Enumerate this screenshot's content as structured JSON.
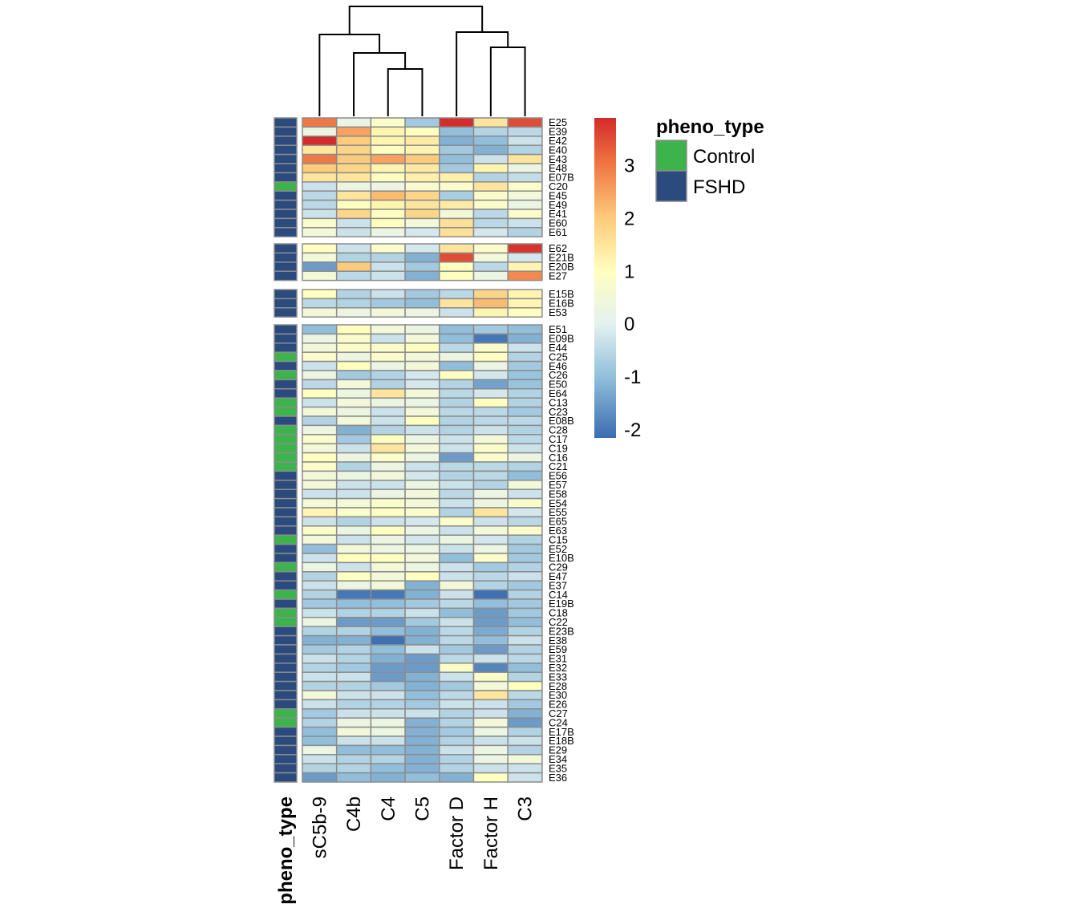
{
  "chart_data": {
    "type": "heatmap",
    "annotation_title": "pheno_type",
    "legend": {
      "title": "pheno_type",
      "items": [
        {
          "label": "Control",
          "color": "#3CB44B"
        },
        {
          "label": "FSHD",
          "color": "#2B4A7E"
        }
      ]
    },
    "colorbar": {
      "ticks": [
        3,
        2,
        1,
        0,
        -1,
        -2
      ],
      "range": [
        -2.15,
        3.9
      ],
      "stops": [
        {
          "value": -2.15,
          "color": "#3B6CB0"
        },
        {
          "value": -1.0,
          "color": "#91BFDB"
        },
        {
          "value": 0.0,
          "color": "#E4F1F0"
        },
        {
          "value": 1.0,
          "color": "#FFFFBF"
        },
        {
          "value": 2.0,
          "color": "#FDCB7B"
        },
        {
          "value": 3.0,
          "color": "#F07844"
        },
        {
          "value": 3.9,
          "color": "#D42B2B"
        }
      ]
    },
    "columns": [
      "sC5b-9",
      "C4b",
      "C4",
      "C5",
      "Factor D",
      "Factor H",
      "C3"
    ],
    "row_groups": [
      {
        "rows": [
          {
            "label": "E25",
            "pheno": "FSHD",
            "values": [
              3.0,
              0.3,
              0.8,
              -0.8,
              3.9,
              1.5,
              3.5
            ]
          },
          {
            "label": "E39",
            "pheno": "FSHD",
            "values": [
              0.3,
              2.5,
              1.2,
              1.0,
              -1.0,
              -0.6,
              -0.5
            ]
          },
          {
            "label": "E42",
            "pheno": "FSHD",
            "values": [
              3.9,
              2.0,
              1.2,
              1.4,
              -1.2,
              -1.0,
              -0.3
            ]
          },
          {
            "label": "E40",
            "pheno": "FSHD",
            "values": [
              1.5,
              1.8,
              1.0,
              1.2,
              -0.8,
              -1.2,
              -0.6
            ]
          },
          {
            "label": "E43",
            "pheno": "FSHD",
            "values": [
              3.0,
              2.0,
              2.5,
              2.0,
              -1.0,
              -0.3,
              1.5
            ]
          },
          {
            "label": "E48",
            "pheno": "FSHD",
            "values": [
              2.0,
              1.8,
              1.2,
              1.4,
              -0.8,
              1.2,
              0.3
            ]
          },
          {
            "label": "E07B",
            "pheno": "FSHD",
            "values": [
              1.5,
              1.5,
              1.0,
              1.3,
              1.3,
              -0.6,
              -0.4
            ]
          },
          {
            "label": "C20",
            "pheno": "Control",
            "values": [
              -0.3,
              0.3,
              0.3,
              0.7,
              0.8,
              1.5,
              0.8
            ]
          },
          {
            "label": "E45",
            "pheno": "FSHD",
            "values": [
              -0.5,
              1.5,
              2.2,
              1.8,
              -0.7,
              0.8,
              0.5
            ]
          },
          {
            "label": "E49",
            "pheno": "FSHD",
            "values": [
              -0.5,
              1.0,
              1.2,
              1.5,
              1.4,
              0.8,
              0.3
            ]
          },
          {
            "label": "E41",
            "pheno": "FSHD",
            "values": [
              -0.3,
              1.8,
              1.0,
              1.8,
              0.5,
              -0.5,
              0.8
            ]
          },
          {
            "label": "E60",
            "pheno": "FSHD",
            "values": [
              0.8,
              -0.3,
              1.0,
              0.5,
              1.6,
              -0.5,
              -0.3
            ]
          },
          {
            "label": "E61",
            "pheno": "FSHD",
            "values": [
              0.5,
              -0.3,
              0.3,
              -0.2,
              1.6,
              -0.2,
              -0.6
            ]
          }
        ]
      },
      {
        "rows": [
          {
            "label": "E62",
            "pheno": "FSHD",
            "values": [
              1.0,
              -0.3,
              0.8,
              -0.2,
              1.5,
              0.8,
              3.8
            ]
          },
          {
            "label": "E21B",
            "pheno": "FSHD",
            "values": [
              0.5,
              -0.6,
              -0.6,
              -1.2,
              3.5,
              0.5,
              -0.2
            ]
          },
          {
            "label": "E20B",
            "pheno": "FSHD",
            "values": [
              -1.5,
              2.0,
              -0.3,
              -0.8,
              1.0,
              -0.5,
              1.2
            ]
          },
          {
            "label": "E27",
            "pheno": "FSHD",
            "values": [
              0.5,
              -0.5,
              -0.3,
              -1.2,
              1.0,
              0.3,
              2.8
            ]
          }
        ]
      },
      {
        "rows": [
          {
            "label": "E15B",
            "pheno": "FSHD",
            "values": [
              1.0,
              -0.6,
              -0.3,
              -0.8,
              -0.5,
              1.8,
              1.2
            ]
          },
          {
            "label": "E16B",
            "pheno": "FSHD",
            "values": [
              -0.5,
              -0.6,
              -0.8,
              -1.0,
              1.5,
              2.2,
              1.2
            ]
          },
          {
            "label": "E53",
            "pheno": "FSHD",
            "values": [
              0.5,
              0.3,
              0.5,
              0.3,
              -0.3,
              1.2,
              1.0
            ]
          }
        ]
      },
      {
        "rows": [
          {
            "label": "E51",
            "pheno": "FSHD",
            "values": [
              -1.0,
              1.0,
              0.5,
              0.3,
              -1.0,
              -0.8,
              -1.0
            ]
          },
          {
            "label": "E09B",
            "pheno": "FSHD",
            "values": [
              0.3,
              0.8,
              -0.3,
              0.5,
              -1.0,
              -2.0,
              -1.2
            ]
          },
          {
            "label": "E44",
            "pheno": "FSHD",
            "values": [
              0.5,
              0.8,
              0.8,
              1.0,
              -0.5,
              0.8,
              -0.3
            ]
          },
          {
            "label": "C25",
            "pheno": "Control",
            "values": [
              0.8,
              0.3,
              0.8,
              0.5,
              0.3,
              1.0,
              -0.6
            ]
          },
          {
            "label": "E46",
            "pheno": "FSHD",
            "values": [
              -0.3,
              1.0,
              0.3,
              0.5,
              -1.0,
              0.3,
              -0.8
            ]
          },
          {
            "label": "C26",
            "pheno": "Control",
            "values": [
              0.3,
              -0.8,
              -0.6,
              -0.2,
              1.0,
              -0.2,
              -0.9
            ]
          },
          {
            "label": "E50",
            "pheno": "FSHD",
            "values": [
              -0.5,
              0.5,
              -0.6,
              -0.2,
              -0.6,
              -1.4,
              -0.9
            ]
          },
          {
            "label": "E64",
            "pheno": "FSHD",
            "values": [
              1.0,
              0.3,
              1.5,
              0.5,
              -0.5,
              -0.2,
              -0.6
            ]
          },
          {
            "label": "C13",
            "pheno": "Control",
            "values": [
              -0.3,
              0.5,
              0.3,
              0.3,
              -0.6,
              1.0,
              -0.6
            ]
          },
          {
            "label": "C23",
            "pheno": "Control",
            "values": [
              0.5,
              0.3,
              -0.3,
              0.5,
              -0.5,
              -0.5,
              -0.8
            ]
          },
          {
            "label": "E08B",
            "pheno": "FSHD",
            "values": [
              -0.6,
              0.5,
              -0.3,
              1.0,
              -0.6,
              -0.5,
              -0.5
            ]
          },
          {
            "label": "C28",
            "pheno": "Control",
            "values": [
              0.3,
              -1.2,
              -0.6,
              -0.3,
              -0.6,
              -0.3,
              -0.6
            ]
          },
          {
            "label": "C17",
            "pheno": "Control",
            "values": [
              0.8,
              -0.8,
              1.0,
              0.3,
              -0.3,
              0.5,
              -0.5
            ]
          },
          {
            "label": "C19",
            "pheno": "Control",
            "values": [
              0.5,
              -0.3,
              1.5,
              0.5,
              -0.3,
              0.8,
              -0.3
            ]
          },
          {
            "label": "C16",
            "pheno": "Control",
            "values": [
              1.0,
              0.3,
              0.8,
              0.3,
              -1.5,
              0.8,
              0.3
            ]
          },
          {
            "label": "C21",
            "pheno": "Control",
            "values": [
              0.8,
              -0.6,
              0.3,
              -0.3,
              -0.5,
              -0.5,
              -0.6
            ]
          },
          {
            "label": "E56",
            "pheno": "FSHD",
            "values": [
              0.5,
              0.3,
              0.5,
              -0.2,
              -0.6,
              -0.5,
              -1.0
            ]
          },
          {
            "label": "E57",
            "pheno": "FSHD",
            "values": [
              0.5,
              -0.3,
              -0.3,
              0.3,
              -0.3,
              -0.6,
              0.5
            ]
          },
          {
            "label": "E58",
            "pheno": "FSHD",
            "values": [
              -0.3,
              -0.3,
              0.3,
              0.5,
              -0.5,
              0.3,
              -0.3
            ]
          },
          {
            "label": "E54",
            "pheno": "FSHD",
            "values": [
              0.5,
              0.5,
              0.8,
              0.5,
              -0.3,
              0.3,
              0.8
            ]
          },
          {
            "label": "E55",
            "pheno": "FSHD",
            "values": [
              1.2,
              0.8,
              1.0,
              0.8,
              -0.6,
              1.5,
              -0.2
            ]
          },
          {
            "label": "E65",
            "pheno": "FSHD",
            "values": [
              -0.3,
              -0.6,
              -0.3,
              -0.2,
              0.8,
              -0.3,
              -0.5
            ]
          },
          {
            "label": "E63",
            "pheno": "FSHD",
            "values": [
              0.8,
              0.3,
              1.0,
              0.3,
              -0.3,
              0.5,
              0.8
            ]
          },
          {
            "label": "C15",
            "pheno": "Control",
            "values": [
              0.5,
              -0.3,
              0.3,
              -0.2,
              0.3,
              -0.2,
              -0.6
            ]
          },
          {
            "label": "E52",
            "pheno": "FSHD",
            "values": [
              -1.0,
              0.5,
              0.3,
              0.3,
              -0.3,
              0.3,
              -0.8
            ]
          },
          {
            "label": "E10B",
            "pheno": "FSHD",
            "values": [
              -0.3,
              1.0,
              1.0,
              0.5,
              -1.0,
              0.8,
              -0.8
            ]
          },
          {
            "label": "C29",
            "pheno": "Control",
            "values": [
              0.3,
              -0.3,
              0.5,
              0.3,
              -0.3,
              -0.8,
              -0.6
            ]
          },
          {
            "label": "E47",
            "pheno": "FSHD",
            "values": [
              -0.6,
              1.0,
              0.5,
              1.0,
              -0.3,
              -0.5,
              -0.3
            ]
          },
          {
            "label": "E37",
            "pheno": "FSHD",
            "values": [
              -0.3,
              0.3,
              0.5,
              -1.2,
              0.5,
              -0.6,
              -0.8
            ]
          },
          {
            "label": "C14",
            "pheno": "Control",
            "values": [
              -0.6,
              -2.0,
              -2.0,
              -1.2,
              -0.3,
              -2.1,
              -0.6
            ]
          },
          {
            "label": "E19B",
            "pheno": "FSHD",
            "values": [
              -0.8,
              -1.0,
              -1.0,
              -0.8,
              -0.5,
              -1.0,
              -0.8
            ]
          },
          {
            "label": "C18",
            "pheno": "Control",
            "values": [
              -0.3,
              -0.6,
              -0.6,
              -0.3,
              -1.0,
              -1.5,
              -0.8
            ]
          },
          {
            "label": "C22",
            "pheno": "Control",
            "values": [
              0.3,
              -1.5,
              -1.5,
              -0.8,
              -0.3,
              -1.5,
              -1.0
            ]
          },
          {
            "label": "E23B",
            "pheno": "FSHD",
            "values": [
              -0.6,
              -0.6,
              -1.0,
              -1.2,
              -0.5,
              -1.3,
              -0.6
            ]
          },
          {
            "label": "E38",
            "pheno": "FSHD",
            "values": [
              -1.2,
              -1.2,
              -2.1,
              -1.2,
              -0.5,
              -1.0,
              -0.3
            ]
          },
          {
            "label": "E59",
            "pheno": "FSHD",
            "values": [
              -0.8,
              -0.6,
              -1.0,
              -0.3,
              -0.8,
              -1.5,
              -0.6
            ]
          },
          {
            "label": "E31",
            "pheno": "FSHD",
            "values": [
              -0.3,
              -0.6,
              -1.2,
              -1.5,
              -0.5,
              -0.3,
              -0.5
            ]
          },
          {
            "label": "E32",
            "pheno": "FSHD",
            "values": [
              -0.6,
              -0.8,
              -1.5,
              -1.5,
              0.8,
              -1.8,
              -1.0
            ]
          },
          {
            "label": "E33",
            "pheno": "FSHD",
            "values": [
              -0.3,
              -0.3,
              -1.5,
              -1.2,
              -0.3,
              0.8,
              -0.6
            ]
          },
          {
            "label": "E28",
            "pheno": "FSHD",
            "values": [
              -0.6,
              -0.6,
              -0.8,
              -1.2,
              -0.8,
              0.5,
              1.0
            ]
          },
          {
            "label": "E30",
            "pheno": "FSHD",
            "values": [
              0.5,
              -0.3,
              -0.3,
              -1.0,
              -0.5,
              1.5,
              -0.5
            ]
          },
          {
            "label": "E26",
            "pheno": "FSHD",
            "values": [
              -0.3,
              -0.6,
              -0.6,
              -0.8,
              -0.3,
              -0.3,
              -0.8
            ]
          },
          {
            "label": "C27",
            "pheno": "Control",
            "values": [
              -0.8,
              -0.3,
              -0.3,
              -0.3,
              -0.6,
              -0.3,
              -1.2
            ]
          },
          {
            "label": "C24",
            "pheno": "Control",
            "values": [
              -0.6,
              0.3,
              0.3,
              -1.2,
              -0.6,
              0.5,
              -1.5
            ]
          },
          {
            "label": "E17B",
            "pheno": "FSHD",
            "values": [
              -1.0,
              0.5,
              0.3,
              -1.2,
              -0.8,
              0.3,
              -0.6
            ]
          },
          {
            "label": "E18B",
            "pheno": "FSHD",
            "values": [
              -1.0,
              -0.3,
              -0.3,
              -1.2,
              -0.6,
              -0.3,
              -0.3
            ]
          },
          {
            "label": "E29",
            "pheno": "FSHD",
            "values": [
              0.3,
              -1.0,
              -1.0,
              -1.2,
              -0.3,
              0.3,
              -0.6
            ]
          },
          {
            "label": "E34",
            "pheno": "FSHD",
            "values": [
              -0.3,
              -0.6,
              -0.6,
              -1.2,
              -0.6,
              0.3,
              0.5
            ]
          },
          {
            "label": "E35",
            "pheno": "FSHD",
            "values": [
              -0.6,
              -0.6,
              -1.0,
              -1.2,
              -0.6,
              -0.3,
              -0.3
            ]
          },
          {
            "label": "E36",
            "pheno": "FSHD",
            "values": [
              -1.5,
              -1.0,
              -1.2,
              -1.0,
              -1.2,
              1.0,
              -0.3
            ]
          }
        ]
      }
    ]
  }
}
